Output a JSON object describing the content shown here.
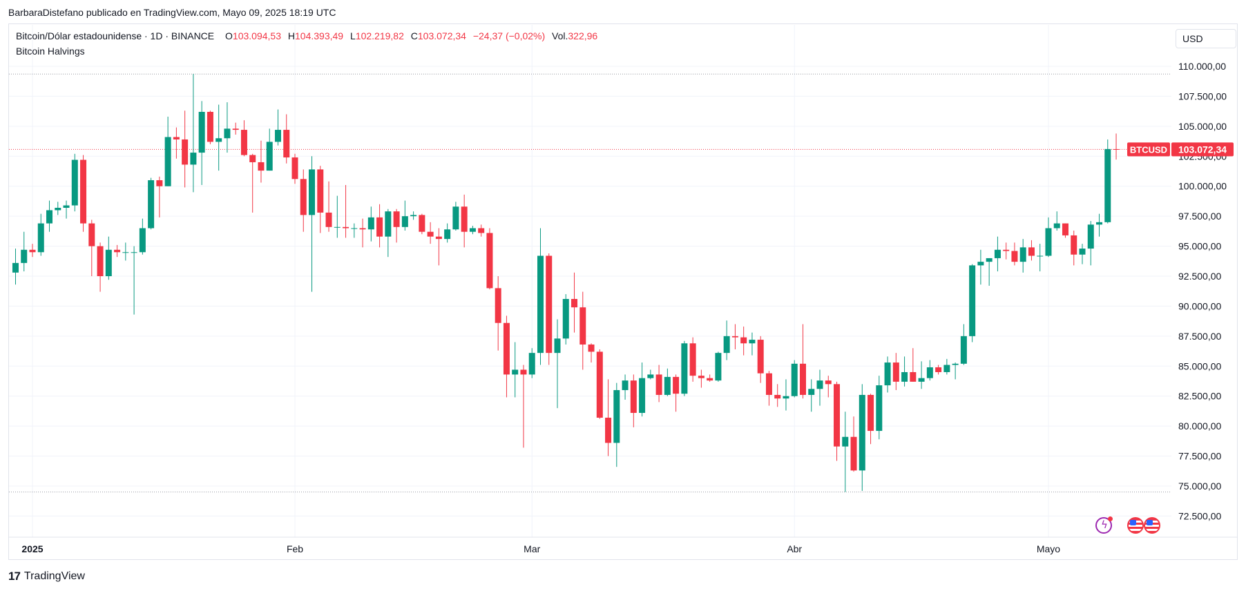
{
  "header": {
    "attribution": "BarbaraDistefano publicado en TradingView.com, Mayo 09, 2025 18:19 UTC"
  },
  "legend": {
    "symbol": "Bitcoin/Dólar estadounidense · 1D · BINANCE",
    "o_label": "O",
    "o_value": "103.094,53",
    "h_label": "H",
    "h_value": "104.393,49",
    "l_label": "L",
    "l_value": "102.219,82",
    "c_label": "C",
    "c_value": "103.072,34",
    "change": "−24,37 (−0,02%)",
    "vol_label": "Vol.",
    "vol_value": "322,96",
    "indicator": "Bitcoin Halvings"
  },
  "currency_button": "USD",
  "footer": {
    "brand": "TradingView",
    "logo_mark": "17"
  },
  "colors": {
    "up": "#089981",
    "down": "#f23645",
    "grid": "#f0f3fa",
    "text": "#131722"
  },
  "icons": [
    "lightning-icon",
    "us-flag-icon",
    "us-flag-icon"
  ],
  "chart_data": {
    "type": "candlestick",
    "symbol_tag": "BTCUSD",
    "last_price_label": "103.072,34",
    "last_price": 103072.34,
    "y_ticks": [
      {
        "value": 72500,
        "label": "72.500,00"
      },
      {
        "value": 75000,
        "label": "75.000,00"
      },
      {
        "value": 77500,
        "label": "77.500,00"
      },
      {
        "value": 80000,
        "label": "80.000,00"
      },
      {
        "value": 82500,
        "label": "82.500,00"
      },
      {
        "value": 85000,
        "label": "85.000,00"
      },
      {
        "value": 87500,
        "label": "87.500,00"
      },
      {
        "value": 90000,
        "label": "90.000,00"
      },
      {
        "value": 92500,
        "label": "92.500,00"
      },
      {
        "value": 95000,
        "label": "95.000,00"
      },
      {
        "value": 97500,
        "label": "97.500,00"
      },
      {
        "value": 100000,
        "label": "100.000,00"
      },
      {
        "value": 102500,
        "label": "102.500,00"
      },
      {
        "value": 105000,
        "label": "105.000,00"
      },
      {
        "value": 107500,
        "label": "107.500,00"
      },
      {
        "value": 110000,
        "label": "110.000,00"
      }
    ],
    "x_ticks": [
      {
        "date": "2025-01-01",
        "label": "2025",
        "bold": true
      },
      {
        "date": "2025-02-01",
        "label": "Feb",
        "bold": false
      },
      {
        "date": "2025-03-01",
        "label": "Mar",
        "bold": false
      },
      {
        "date": "2025-04-01",
        "label": "Abr",
        "bold": false
      },
      {
        "date": "2025-05-01",
        "label": "Mayo",
        "bold": false
      }
    ],
    "high_marker": 109350,
    "low_marker": 74500,
    "candles": [
      {
        "d": "2024-12-28",
        "o": 95000,
        "h": 95600,
        "l": 93700,
        "c": 93700
      },
      {
        "d": "2024-12-29",
        "o": 93700,
        "h": 95100,
        "l": 91500,
        "c": 92800
      },
      {
        "d": "2024-12-30",
        "o": 92800,
        "h": 94800,
        "l": 91800,
        "c": 93600
      },
      {
        "d": "2024-12-31",
        "o": 93600,
        "h": 96200,
        "l": 92900,
        "c": 94700
      },
      {
        "d": "2025-01-01",
        "o": 94700,
        "h": 95200,
        "l": 94100,
        "c": 94500
      },
      {
        "d": "2025-01-02",
        "o": 94500,
        "h": 97700,
        "l": 94200,
        "c": 96900
      },
      {
        "d": "2025-01-03",
        "o": 96900,
        "h": 98800,
        "l": 96200,
        "c": 98000
      },
      {
        "d": "2025-01-04",
        "o": 98000,
        "h": 98700,
        "l": 97600,
        "c": 98200
      },
      {
        "d": "2025-01-05",
        "o": 98200,
        "h": 98800,
        "l": 97300,
        "c": 98400
      },
      {
        "d": "2025-01-06",
        "o": 98400,
        "h": 102700,
        "l": 97900,
        "c": 102200
      },
      {
        "d": "2025-01-07",
        "o": 102200,
        "h": 102600,
        "l": 96200,
        "c": 96900
      },
      {
        "d": "2025-01-08",
        "o": 96900,
        "h": 97200,
        "l": 92500,
        "c": 95000
      },
      {
        "d": "2025-01-09",
        "o": 95000,
        "h": 95300,
        "l": 91200,
        "c": 92500
      },
      {
        "d": "2025-01-10",
        "o": 92500,
        "h": 95800,
        "l": 92200,
        "c": 94700
      },
      {
        "d": "2025-01-11",
        "o": 94700,
        "h": 95100,
        "l": 94100,
        "c": 94500
      },
      {
        "d": "2025-01-12",
        "o": 94500,
        "h": 95300,
        "l": 93800,
        "c": 94500
      },
      {
        "d": "2025-01-13",
        "o": 94500,
        "h": 95000,
        "l": 89300,
        "c": 94500
      },
      {
        "d": "2025-01-14",
        "o": 94500,
        "h": 97300,
        "l": 94300,
        "c": 96500
      },
      {
        "d": "2025-01-15",
        "o": 96500,
        "h": 100700,
        "l": 96400,
        "c": 100500
      },
      {
        "d": "2025-01-16",
        "o": 100500,
        "h": 100800,
        "l": 97400,
        "c": 100000
      },
      {
        "d": "2025-01-17",
        "o": 100000,
        "h": 105800,
        "l": 100000,
        "c": 104100
      },
      {
        "d": "2025-01-18",
        "o": 104100,
        "h": 104900,
        "l": 102300,
        "c": 103900
      },
      {
        "d": "2025-01-19",
        "o": 103900,
        "h": 106300,
        "l": 99900,
        "c": 101800
      },
      {
        "d": "2025-01-20",
        "o": 101800,
        "h": 109350,
        "l": 99500,
        "c": 102800
      },
      {
        "d": "2025-01-21",
        "o": 102800,
        "h": 107100,
        "l": 100100,
        "c": 106200
      },
      {
        "d": "2025-01-22",
        "o": 106200,
        "h": 106300,
        "l": 103500,
        "c": 103700
      },
      {
        "d": "2025-01-23",
        "o": 103700,
        "h": 106800,
        "l": 101300,
        "c": 104000
      },
      {
        "d": "2025-01-24",
        "o": 104000,
        "h": 107000,
        "l": 102800,
        "c": 104800
      },
      {
        "d": "2025-01-25",
        "o": 104800,
        "h": 105300,
        "l": 104300,
        "c": 104700
      },
      {
        "d": "2025-01-26",
        "o": 104700,
        "h": 105500,
        "l": 102500,
        "c": 102600
      },
      {
        "d": "2025-01-27",
        "o": 102600,
        "h": 102700,
        "l": 97800,
        "c": 102000
      },
      {
        "d": "2025-01-28",
        "o": 102000,
        "h": 103800,
        "l": 100300,
        "c": 101300
      },
      {
        "d": "2025-01-29",
        "o": 101300,
        "h": 104800,
        "l": 101300,
        "c": 103700
      },
      {
        "d": "2025-01-30",
        "o": 103700,
        "h": 106400,
        "l": 103400,
        "c": 104700
      },
      {
        "d": "2025-01-31",
        "o": 104700,
        "h": 106000,
        "l": 101900,
        "c": 102400
      },
      {
        "d": "2025-02-01",
        "o": 102400,
        "h": 102700,
        "l": 100200,
        "c": 100600
      },
      {
        "d": "2025-02-02",
        "o": 100600,
        "h": 101400,
        "l": 96200,
        "c": 97600
      },
      {
        "d": "2025-02-03",
        "o": 97600,
        "h": 102500,
        "l": 91200,
        "c": 101400
      },
      {
        "d": "2025-02-04",
        "o": 101400,
        "h": 101700,
        "l": 96100,
        "c": 97800
      },
      {
        "d": "2025-02-05",
        "o": 97800,
        "h": 100400,
        "l": 96200,
        "c": 96600
      },
      {
        "d": "2025-02-06",
        "o": 96600,
        "h": 99200,
        "l": 95700,
        "c": 96600
      },
      {
        "d": "2025-02-07",
        "o": 96600,
        "h": 100100,
        "l": 95700,
        "c": 96500
      },
      {
        "d": "2025-02-08",
        "o": 96500,
        "h": 96900,
        "l": 95700,
        "c": 96500
      },
      {
        "d": "2025-02-09",
        "o": 96500,
        "h": 97300,
        "l": 94900,
        "c": 96400
      },
      {
        "d": "2025-02-10",
        "o": 96400,
        "h": 98300,
        "l": 95400,
        "c": 97400
      },
      {
        "d": "2025-02-11",
        "o": 97400,
        "h": 98500,
        "l": 94900,
        "c": 95800
      },
      {
        "d": "2025-02-12",
        "o": 95800,
        "h": 98100,
        "l": 94100,
        "c": 97900
      },
      {
        "d": "2025-02-13",
        "o": 97900,
        "h": 98100,
        "l": 95300,
        "c": 96600
      },
      {
        "d": "2025-02-14",
        "o": 96600,
        "h": 98800,
        "l": 96300,
        "c": 97500
      },
      {
        "d": "2025-02-15",
        "o": 97500,
        "h": 97900,
        "l": 97200,
        "c": 97600
      },
      {
        "d": "2025-02-16",
        "o": 97600,
        "h": 97700,
        "l": 96000,
        "c": 96200
      },
      {
        "d": "2025-02-17",
        "o": 96200,
        "h": 97000,
        "l": 95200,
        "c": 95800
      },
      {
        "d": "2025-02-18",
        "o": 95800,
        "h": 96500,
        "l": 93400,
        "c": 95600
      },
      {
        "d": "2025-02-19",
        "o": 95600,
        "h": 96900,
        "l": 95300,
        "c": 96400
      },
      {
        "d": "2025-02-20",
        "o": 96400,
        "h": 98700,
        "l": 96300,
        "c": 98300
      },
      {
        "d": "2025-02-21",
        "o": 98300,
        "h": 99300,
        "l": 94900,
        "c": 96200
      },
      {
        "d": "2025-02-22",
        "o": 96200,
        "h": 96700,
        "l": 96000,
        "c": 96500
      },
      {
        "d": "2025-02-23",
        "o": 96500,
        "h": 96800,
        "l": 95800,
        "c": 96100
      },
      {
        "d": "2025-02-24",
        "o": 96100,
        "h": 96500,
        "l": 91400,
        "c": 91500
      },
      {
        "d": "2025-02-25",
        "o": 91500,
        "h": 92500,
        "l": 86300,
        "c": 88600
      },
      {
        "d": "2025-02-26",
        "o": 88600,
        "h": 89200,
        "l": 82400,
        "c": 84300
      },
      {
        "d": "2025-02-27",
        "o": 84300,
        "h": 87000,
        "l": 82400,
        "c": 84700
      },
      {
        "d": "2025-02-28",
        "o": 84700,
        "h": 85100,
        "l": 78200,
        "c": 84300
      },
      {
        "d": "2025-03-01",
        "o": 84300,
        "h": 86500,
        "l": 84000,
        "c": 86100
      },
      {
        "d": "2025-03-02",
        "o": 86100,
        "h": 96500,
        "l": 85100,
        "c": 94200
      },
      {
        "d": "2025-03-03",
        "o": 94200,
        "h": 94400,
        "l": 85100,
        "c": 86100
      },
      {
        "d": "2025-03-04",
        "o": 86100,
        "h": 88900,
        "l": 81500,
        "c": 87300
      },
      {
        "d": "2025-03-05",
        "o": 87300,
        "h": 91000,
        "l": 86800,
        "c": 90600
      },
      {
        "d": "2025-03-06",
        "o": 90600,
        "h": 92800,
        "l": 87800,
        "c": 89900
      },
      {
        "d": "2025-03-07",
        "o": 89900,
        "h": 91200,
        "l": 84700,
        "c": 86800
      },
      {
        "d": "2025-03-08",
        "o": 86800,
        "h": 86900,
        "l": 85300,
        "c": 86200
      },
      {
        "d": "2025-03-09",
        "o": 86200,
        "h": 86400,
        "l": 80600,
        "c": 80700
      },
      {
        "d": "2025-03-10",
        "o": 80700,
        "h": 83900,
        "l": 77500,
        "c": 78600
      },
      {
        "d": "2025-03-11",
        "o": 78600,
        "h": 83600,
        "l": 76600,
        "c": 83000
      },
      {
        "d": "2025-03-12",
        "o": 83000,
        "h": 84300,
        "l": 82200,
        "c": 83800
      },
      {
        "d": "2025-03-13",
        "o": 83800,
        "h": 84300,
        "l": 79900,
        "c": 81100
      },
      {
        "d": "2025-03-14",
        "o": 81100,
        "h": 85300,
        "l": 80800,
        "c": 84000
      },
      {
        "d": "2025-03-15",
        "o": 84000,
        "h": 84700,
        "l": 83900,
        "c": 84300
      },
      {
        "d": "2025-03-16",
        "o": 84300,
        "h": 85100,
        "l": 82000,
        "c": 82600
      },
      {
        "d": "2025-03-17",
        "o": 82600,
        "h": 84800,
        "l": 82500,
        "c": 84100
      },
      {
        "d": "2025-03-18",
        "o": 84100,
        "h": 84300,
        "l": 81200,
        "c": 82700
      },
      {
        "d": "2025-03-19",
        "o": 82700,
        "h": 87100,
        "l": 82500,
        "c": 86900
      },
      {
        "d": "2025-03-20",
        "o": 86900,
        "h": 87400,
        "l": 83700,
        "c": 84200
      },
      {
        "d": "2025-03-21",
        "o": 84200,
        "h": 84700,
        "l": 83200,
        "c": 84000
      },
      {
        "d": "2025-03-22",
        "o": 84000,
        "h": 84300,
        "l": 83700,
        "c": 83800
      },
      {
        "d": "2025-03-23",
        "o": 83800,
        "h": 86200,
        "l": 83700,
        "c": 86100
      },
      {
        "d": "2025-03-24",
        "o": 86100,
        "h": 88800,
        "l": 85500,
        "c": 87500
      },
      {
        "d": "2025-03-25",
        "o": 87500,
        "h": 88500,
        "l": 86400,
        "c": 87400
      },
      {
        "d": "2025-03-26",
        "o": 87400,
        "h": 88300,
        "l": 85900,
        "c": 86900
      },
      {
        "d": "2025-03-27",
        "o": 86900,
        "h": 87800,
        "l": 85900,
        "c": 87200
      },
      {
        "d": "2025-03-28",
        "o": 87200,
        "h": 87500,
        "l": 83600,
        "c": 84400
      },
      {
        "d": "2025-03-29",
        "o": 84400,
        "h": 84600,
        "l": 81700,
        "c": 82600
      },
      {
        "d": "2025-03-30",
        "o": 82600,
        "h": 83500,
        "l": 81600,
        "c": 82300
      },
      {
        "d": "2025-03-31",
        "o": 82300,
        "h": 83900,
        "l": 81300,
        "c": 82500
      },
      {
        "d": "2025-04-01",
        "o": 82500,
        "h": 85500,
        "l": 82400,
        "c": 85200
      },
      {
        "d": "2025-04-02",
        "o": 85200,
        "h": 88500,
        "l": 82300,
        "c": 82600
      },
      {
        "d": "2025-04-03",
        "o": 82600,
        "h": 83900,
        "l": 81200,
        "c": 83100
      },
      {
        "d": "2025-04-04",
        "o": 83100,
        "h": 84700,
        "l": 81700,
        "c": 83800
      },
      {
        "d": "2025-04-05",
        "o": 83800,
        "h": 84200,
        "l": 82400,
        "c": 83500
      },
      {
        "d": "2025-04-06",
        "o": 83500,
        "h": 83700,
        "l": 77100,
        "c": 78300
      },
      {
        "d": "2025-04-07",
        "o": 78300,
        "h": 81200,
        "l": 74500,
        "c": 79100
      },
      {
        "d": "2025-04-08",
        "o": 79100,
        "h": 80800,
        "l": 76200,
        "c": 76300
      },
      {
        "d": "2025-04-09",
        "o": 76300,
        "h": 83500,
        "l": 74600,
        "c": 82600
      },
      {
        "d": "2025-04-10",
        "o": 82600,
        "h": 82700,
        "l": 78500,
        "c": 79600
      },
      {
        "d": "2025-04-11",
        "o": 79600,
        "h": 84200,
        "l": 78900,
        "c": 83400
      },
      {
        "d": "2025-04-12",
        "o": 83400,
        "h": 85800,
        "l": 82800,
        "c": 85300
      },
      {
        "d": "2025-04-13",
        "o": 85300,
        "h": 86100,
        "l": 83000,
        "c": 83700
      },
      {
        "d": "2025-04-14",
        "o": 83700,
        "h": 85800,
        "l": 83300,
        "c": 84500
      },
      {
        "d": "2025-04-15",
        "o": 84500,
        "h": 86500,
        "l": 83700,
        "c": 83700
      },
      {
        "d": "2025-04-16",
        "o": 83700,
        "h": 85400,
        "l": 83100,
        "c": 84000
      },
      {
        "d": "2025-04-17",
        "o": 84000,
        "h": 85500,
        "l": 83800,
        "c": 84900
      },
      {
        "d": "2025-04-18",
        "o": 84900,
        "h": 85100,
        "l": 84300,
        "c": 84500
      },
      {
        "d": "2025-04-19",
        "o": 84500,
        "h": 85600,
        "l": 84300,
        "c": 85100
      },
      {
        "d": "2025-04-20",
        "o": 85100,
        "h": 85300,
        "l": 83900,
        "c": 85200
      },
      {
        "d": "2025-04-21",
        "o": 85200,
        "h": 88500,
        "l": 85100,
        "c": 87500
      },
      {
        "d": "2025-04-22",
        "o": 87500,
        "h": 93500,
        "l": 87000,
        "c": 93400
      },
      {
        "d": "2025-04-23",
        "o": 93400,
        "h": 94700,
        "l": 91800,
        "c": 93700
      },
      {
        "d": "2025-04-24",
        "o": 93700,
        "h": 94000,
        "l": 91700,
        "c": 94000
      },
      {
        "d": "2025-04-25",
        "o": 94000,
        "h": 95800,
        "l": 92900,
        "c": 94700
      },
      {
        "d": "2025-04-26",
        "o": 94700,
        "h": 95300,
        "l": 93900,
        "c": 94600
      },
      {
        "d": "2025-04-27",
        "o": 94600,
        "h": 95300,
        "l": 93400,
        "c": 93700
      },
      {
        "d": "2025-04-28",
        "o": 93700,
        "h": 95600,
        "l": 92800,
        "c": 94900
      },
      {
        "d": "2025-04-29",
        "o": 94900,
        "h": 95500,
        "l": 93800,
        "c": 94200
      },
      {
        "d": "2025-04-30",
        "o": 94200,
        "h": 95200,
        "l": 92900,
        "c": 94200
      },
      {
        "d": "2025-05-01",
        "o": 94200,
        "h": 97400,
        "l": 94100,
        "c": 96500
      },
      {
        "d": "2025-05-02",
        "o": 96500,
        "h": 97900,
        "l": 96300,
        "c": 96900
      },
      {
        "d": "2025-05-03",
        "o": 96900,
        "h": 96900,
        "l": 95700,
        "c": 95900
      },
      {
        "d": "2025-05-04",
        "o": 95900,
        "h": 96300,
        "l": 93400,
        "c": 94300
      },
      {
        "d": "2025-05-05",
        "o": 94300,
        "h": 95200,
        "l": 93500,
        "c": 94800
      },
      {
        "d": "2025-05-06",
        "o": 94800,
        "h": 97100,
        "l": 93400,
        "c": 96800
      },
      {
        "d": "2025-05-07",
        "o": 96800,
        "h": 97700,
        "l": 95800,
        "c": 97000
      },
      {
        "d": "2025-05-08",
        "o": 97000,
        "h": 103900,
        "l": 96900,
        "c": 103100
      },
      {
        "d": "2025-05-09",
        "o": 103095,
        "h": 104393,
        "l": 102220,
        "c": 103072
      }
    ]
  }
}
